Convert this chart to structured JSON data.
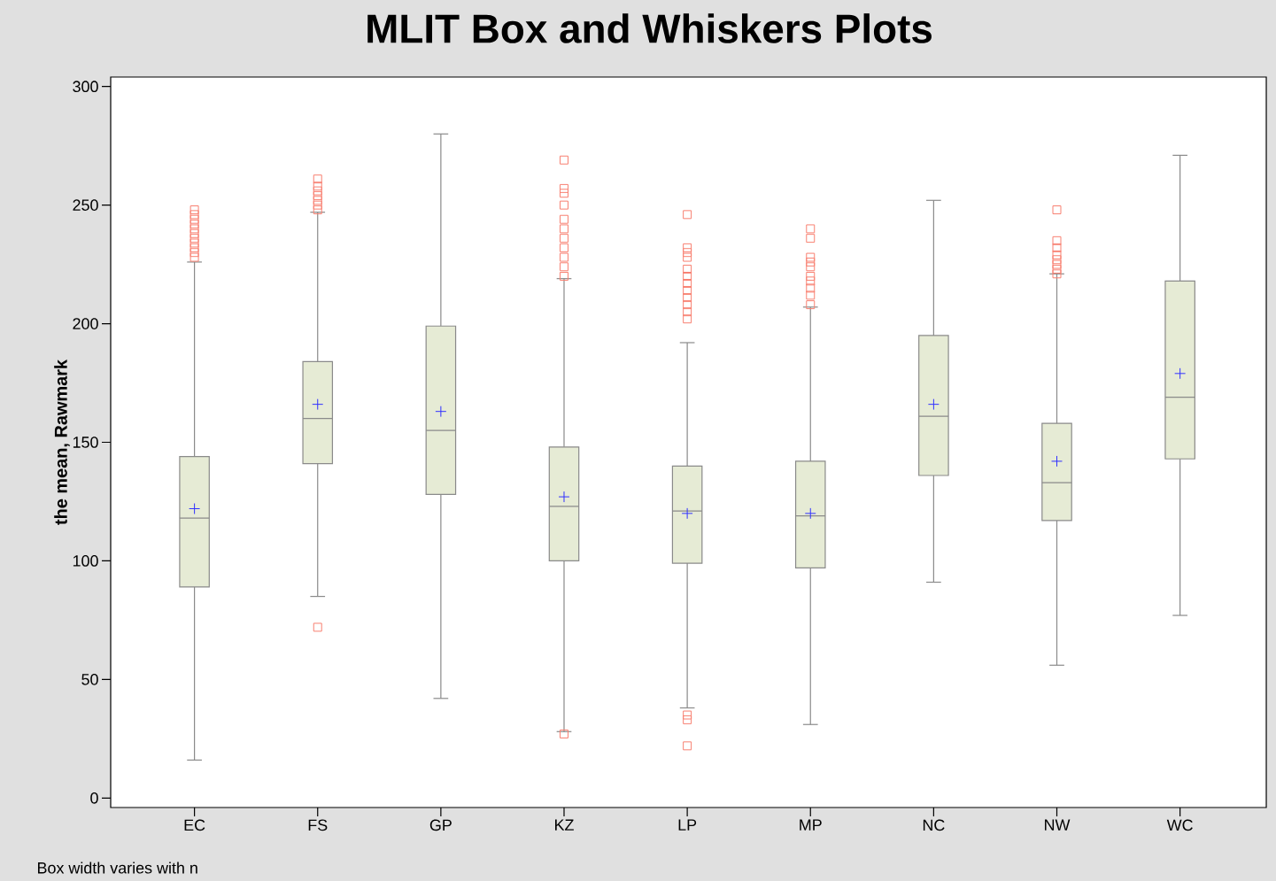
{
  "chart_data": {
    "type": "box",
    "title": "MLIT Box and Whiskers Plots",
    "ylabel": "the mean, Rawmark",
    "annotations": [
      "Box width varies with n"
    ],
    "categories": [
      "EC",
      "FS",
      "GP",
      "KZ",
      "LP",
      "MP",
      "NC",
      "NW",
      "WC"
    ],
    "color": "#e6ebd5",
    "ylim": [
      -4,
      304
    ],
    "yticks": [
      0,
      50,
      100,
      150,
      200,
      250,
      300
    ],
    "boxes": [
      {
        "low": 16,
        "q1": 89,
        "median": 118,
        "q3": 144,
        "high": 226,
        "mean": 122,
        "outliers": [
          228,
          230,
          232,
          234,
          236,
          238,
          240,
          242,
          244,
          246,
          248
        ]
      },
      {
        "low": 85,
        "q1": 141,
        "median": 160,
        "q3": 184,
        "high": 247,
        "mean": 166,
        "outliers": [
          72,
          248,
          250,
          252,
          254,
          256,
          258,
          261
        ]
      },
      {
        "low": 42,
        "q1": 128,
        "median": 155,
        "q3": 199,
        "high": 280,
        "mean": 163
      },
      {
        "low": 28,
        "q1": 100,
        "median": 123,
        "q3": 148,
        "high": 219,
        "mean": 127,
        "outliers": [
          27,
          220,
          224,
          228,
          232,
          236,
          240,
          244,
          250,
          255,
          257,
          269
        ]
      },
      {
        "low": 38,
        "q1": 99,
        "median": 121,
        "q3": 140,
        "high": 192,
        "mean": 120,
        "outliers": [
          22,
          33,
          35,
          202,
          205,
          208,
          211,
          214,
          217,
          220,
          223,
          228,
          230,
          232,
          246
        ]
      },
      {
        "low": 31,
        "q1": 97,
        "median": 119,
        "q3": 142,
        "high": 207,
        "mean": 120,
        "outliers": [
          208,
          212,
          215,
          218,
          220,
          224,
          226,
          228,
          236,
          240
        ]
      },
      {
        "low": 91,
        "q1": 136,
        "median": 161,
        "q3": 195,
        "high": 252,
        "mean": 166
      },
      {
        "low": 56,
        "q1": 117,
        "median": 133,
        "q3": 158,
        "high": 221,
        "mean": 142,
        "outliers": [
          221,
          223,
          225,
          227,
          229,
          232,
          235,
          248
        ]
      },
      {
        "low": 77,
        "q1": 143,
        "median": 169,
        "q3": 218,
        "high": 271,
        "mean": 179
      }
    ]
  }
}
